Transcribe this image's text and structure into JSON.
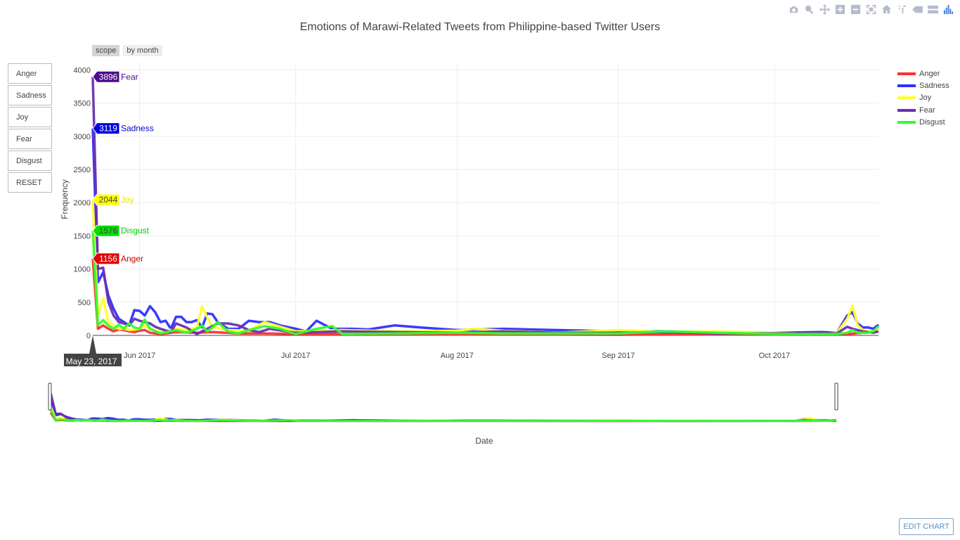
{
  "title": "Emotions of Marawi-Related Tweets from Philippine-based Twitter Users",
  "modebar": [
    "camera-icon",
    "zoom-icon",
    "pan-icon",
    "zoom-in-icon",
    "zoom-out-icon",
    "autoscale-icon",
    "reset-axes-icon",
    "spike-lines-icon",
    "hover-closest-icon",
    "hover-compare-icon",
    "plotly-logo-icon"
  ],
  "range_buttons": [
    "scope",
    "by month"
  ],
  "side_buttons": [
    "Anger",
    "Sadness",
    "Joy",
    "Fear",
    "Disgust",
    "RESET"
  ],
  "edit_chart": "EDIT CHART",
  "hover_date": "May 23, 2017",
  "colors": {
    "Anger": "#ff2f2f",
    "Sadness": "#2f2fff",
    "Joy": "#ffff2f",
    "Fear": "#6a2fb0",
    "Disgust": "#2fff2f"
  },
  "hover_labels": [
    {
      "series": "Fear",
      "value": "3896",
      "name": "Fear",
      "bg": "#4b0d8c",
      "fg": "#fff",
      "text": "#4b0d8c"
    },
    {
      "series": "Sadness",
      "value": "3119",
      "name": "Sadness",
      "bg": "#0000e0",
      "fg": "#fff",
      "text": "#0000c0"
    },
    {
      "series": "Joy",
      "value": "2044",
      "name": "Joy",
      "bg": "#ffff00",
      "fg": "#444",
      "text": "#e6e600"
    },
    {
      "series": "Disgust",
      "value": "1576",
      "name": "Disgust",
      "bg": "#00e000",
      "fg": "#444",
      "text": "#00cc00"
    },
    {
      "series": "Anger",
      "value": "1156",
      "name": "Anger",
      "bg": "#e00000",
      "fg": "#fff",
      "text": "#cc0000"
    }
  ],
  "chart_data": {
    "type": "line",
    "title": "Emotions of Marawi-Related Tweets from Philippine-based Twitter Users",
    "xlabel": "Date",
    "ylabel": "Frequency",
    "xlim": [
      "2017-05-23",
      "2017-10-21"
    ],
    "ylim": [
      0,
      4100
    ],
    "yticks": [
      0,
      500,
      1000,
      1500,
      2000,
      2500,
      3000,
      3500,
      4000
    ],
    "xticks": [
      {
        "date": "2017-06-01",
        "label": "Jun 2017"
      },
      {
        "date": "2017-07-01",
        "label": "Jul 2017"
      },
      {
        "date": "2017-08-01",
        "label": "Aug 2017"
      },
      {
        "date": "2017-09-01",
        "label": "Sep 2017"
      },
      {
        "date": "2017-10-01",
        "label": "Oct 2017"
      }
    ],
    "legend_position": "right",
    "grid": true,
    "series": [
      {
        "name": "Anger",
        "color": "#ff2f2f",
        "points": [
          [
            "2017-05-23",
            1156
          ],
          [
            "2017-05-24",
            100
          ],
          [
            "2017-05-25",
            150
          ],
          [
            "2017-05-26",
            100
          ],
          [
            "2017-05-27",
            60
          ],
          [
            "2017-05-28",
            90
          ],
          [
            "2017-05-29",
            80
          ],
          [
            "2017-05-30",
            60
          ],
          [
            "2017-05-31",
            50
          ],
          [
            "2017-06-01",
            70
          ],
          [
            "2017-06-02",
            80
          ],
          [
            "2017-06-03",
            40
          ],
          [
            "2017-06-04",
            30
          ],
          [
            "2017-06-05",
            20
          ],
          [
            "2017-06-08",
            50
          ],
          [
            "2017-06-12",
            40
          ],
          [
            "2017-06-15",
            50
          ],
          [
            "2017-06-20",
            30
          ],
          [
            "2017-06-25",
            30
          ],
          [
            "2017-07-01",
            20
          ],
          [
            "2017-07-10",
            20
          ],
          [
            "2017-07-20",
            15
          ],
          [
            "2017-08-01",
            15
          ],
          [
            "2017-08-15",
            15
          ],
          [
            "2017-09-01",
            10
          ],
          [
            "2017-09-15",
            15
          ],
          [
            "2017-10-01",
            15
          ],
          [
            "2017-10-10",
            20
          ],
          [
            "2017-10-13",
            30
          ],
          [
            "2017-10-15",
            20
          ],
          [
            "2017-10-18",
            40
          ],
          [
            "2017-10-21",
            60
          ]
        ]
      },
      {
        "name": "Sadness",
        "color": "#2f2fff",
        "points": [
          [
            "2017-05-23",
            3119
          ],
          [
            "2017-05-24",
            800
          ],
          [
            "2017-05-25",
            950
          ],
          [
            "2017-05-26",
            600
          ],
          [
            "2017-05-27",
            400
          ],
          [
            "2017-05-28",
            250
          ],
          [
            "2017-05-29",
            200
          ],
          [
            "2017-05-30",
            150
          ],
          [
            "2017-05-31",
            380
          ],
          [
            "2017-06-01",
            370
          ],
          [
            "2017-06-02",
            300
          ],
          [
            "2017-06-03",
            440
          ],
          [
            "2017-06-04",
            350
          ],
          [
            "2017-06-05",
            200
          ],
          [
            "2017-06-06",
            220
          ],
          [
            "2017-06-07",
            100
          ],
          [
            "2017-06-08",
            280
          ],
          [
            "2017-06-09",
            280
          ],
          [
            "2017-06-10",
            200
          ],
          [
            "2017-06-11",
            200
          ],
          [
            "2017-06-12",
            230
          ],
          [
            "2017-06-13",
            120
          ],
          [
            "2017-06-14",
            330
          ],
          [
            "2017-06-15",
            320
          ],
          [
            "2017-06-16",
            200
          ],
          [
            "2017-06-18",
            100
          ],
          [
            "2017-06-20",
            100
          ],
          [
            "2017-06-22",
            220
          ],
          [
            "2017-06-24",
            200
          ],
          [
            "2017-06-26",
            200
          ],
          [
            "2017-06-28",
            150
          ],
          [
            "2017-07-01",
            100
          ],
          [
            "2017-07-03",
            60
          ],
          [
            "2017-07-05",
            220
          ],
          [
            "2017-07-08",
            100
          ],
          [
            "2017-07-12",
            100
          ],
          [
            "2017-07-15",
            90
          ],
          [
            "2017-07-20",
            150
          ],
          [
            "2017-07-25",
            120
          ],
          [
            "2017-08-01",
            80
          ],
          [
            "2017-08-10",
            100
          ],
          [
            "2017-08-20",
            80
          ],
          [
            "2017-09-01",
            60
          ],
          [
            "2017-09-10",
            60
          ],
          [
            "2017-09-20",
            40
          ],
          [
            "2017-10-01",
            40
          ],
          [
            "2017-10-10",
            50
          ],
          [
            "2017-10-13",
            40
          ],
          [
            "2017-10-15",
            300
          ],
          [
            "2017-10-16",
            350
          ],
          [
            "2017-10-17",
            180
          ],
          [
            "2017-10-18",
            120
          ],
          [
            "2017-10-19",
            120
          ],
          [
            "2017-10-20",
            100
          ],
          [
            "2017-10-21",
            160
          ]
        ]
      },
      {
        "name": "Joy",
        "color": "#ffff2f",
        "points": [
          [
            "2017-05-23",
            2044
          ],
          [
            "2017-05-24",
            300
          ],
          [
            "2017-05-25",
            560
          ],
          [
            "2017-05-26",
            200
          ],
          [
            "2017-05-27",
            150
          ],
          [
            "2017-05-28",
            100
          ],
          [
            "2017-05-29",
            100
          ],
          [
            "2017-05-30",
            80
          ],
          [
            "2017-05-31",
            90
          ],
          [
            "2017-06-01",
            100
          ],
          [
            "2017-06-02",
            150
          ],
          [
            "2017-06-03",
            100
          ],
          [
            "2017-06-05",
            50
          ],
          [
            "2017-06-08",
            100
          ],
          [
            "2017-06-10",
            80
          ],
          [
            "2017-06-12",
            120
          ],
          [
            "2017-06-13",
            440
          ],
          [
            "2017-06-14",
            270
          ],
          [
            "2017-06-15",
            130
          ],
          [
            "2017-06-18",
            80
          ],
          [
            "2017-06-22",
            70
          ],
          [
            "2017-06-25",
            200
          ],
          [
            "2017-07-01",
            60
          ],
          [
            "2017-07-10",
            80
          ],
          [
            "2017-07-20",
            60
          ],
          [
            "2017-08-01",
            70
          ],
          [
            "2017-08-04",
            100
          ],
          [
            "2017-08-10",
            70
          ],
          [
            "2017-08-20",
            40
          ],
          [
            "2017-09-01",
            80
          ],
          [
            "2017-09-10",
            50
          ],
          [
            "2017-09-20",
            60
          ],
          [
            "2017-10-01",
            40
          ],
          [
            "2017-10-10",
            30
          ],
          [
            "2017-10-13",
            40
          ],
          [
            "2017-10-15",
            250
          ],
          [
            "2017-10-16",
            450
          ],
          [
            "2017-10-17",
            150
          ],
          [
            "2017-10-18",
            80
          ],
          [
            "2017-10-19",
            60
          ],
          [
            "2017-10-20",
            60
          ],
          [
            "2017-10-21",
            80
          ]
        ]
      },
      {
        "name": "Fear",
        "color": "#6a2fb0",
        "points": [
          [
            "2017-05-23",
            3896
          ],
          [
            "2017-05-24",
            1000
          ],
          [
            "2017-05-25",
            1020
          ],
          [
            "2017-05-26",
            500
          ],
          [
            "2017-05-27",
            300
          ],
          [
            "2017-05-28",
            200
          ],
          [
            "2017-05-29",
            180
          ],
          [
            "2017-05-30",
            150
          ],
          [
            "2017-05-31",
            250
          ],
          [
            "2017-06-01",
            220
          ],
          [
            "2017-06-02",
            200
          ],
          [
            "2017-06-03",
            180
          ],
          [
            "2017-06-04",
            130
          ],
          [
            "2017-06-05",
            100
          ],
          [
            "2017-06-07",
            50
          ],
          [
            "2017-06-08",
            180
          ],
          [
            "2017-06-10",
            120
          ],
          [
            "2017-06-12",
            20
          ],
          [
            "2017-06-14",
            100
          ],
          [
            "2017-06-16",
            180
          ],
          [
            "2017-06-18",
            180
          ],
          [
            "2017-06-20",
            150
          ],
          [
            "2017-06-22",
            80
          ],
          [
            "2017-06-24",
            50
          ],
          [
            "2017-06-26",
            100
          ],
          [
            "2017-07-01",
            40
          ],
          [
            "2017-07-10",
            60
          ],
          [
            "2017-07-20",
            50
          ],
          [
            "2017-08-01",
            40
          ],
          [
            "2017-08-10",
            60
          ],
          [
            "2017-08-20",
            40
          ],
          [
            "2017-09-01",
            40
          ],
          [
            "2017-09-10",
            50
          ],
          [
            "2017-09-20",
            30
          ],
          [
            "2017-10-01",
            30
          ],
          [
            "2017-10-10",
            40
          ],
          [
            "2017-10-13",
            30
          ],
          [
            "2017-10-15",
            130
          ],
          [
            "2017-10-16",
            100
          ],
          [
            "2017-10-17",
            80
          ],
          [
            "2017-10-18",
            60
          ],
          [
            "2017-10-19",
            50
          ],
          [
            "2017-10-20",
            40
          ],
          [
            "2017-10-21",
            60
          ]
        ]
      },
      {
        "name": "Disgust",
        "color": "#2fff2f",
        "points": [
          [
            "2017-05-23",
            1576
          ],
          [
            "2017-05-24",
            150
          ],
          [
            "2017-05-25",
            230
          ],
          [
            "2017-05-26",
            150
          ],
          [
            "2017-05-27",
            100
          ],
          [
            "2017-05-28",
            160
          ],
          [
            "2017-05-29",
            100
          ],
          [
            "2017-05-30",
            180
          ],
          [
            "2017-05-31",
            120
          ],
          [
            "2017-06-01",
            100
          ],
          [
            "2017-06-02",
            240
          ],
          [
            "2017-06-03",
            100
          ],
          [
            "2017-06-05",
            30
          ],
          [
            "2017-06-08",
            80
          ],
          [
            "2017-06-10",
            40
          ],
          [
            "2017-06-12",
            100
          ],
          [
            "2017-06-13",
            150
          ],
          [
            "2017-06-14",
            60
          ],
          [
            "2017-06-15",
            120
          ],
          [
            "2017-06-16",
            200
          ],
          [
            "2017-06-18",
            60
          ],
          [
            "2017-06-20",
            30
          ],
          [
            "2017-06-22",
            80
          ],
          [
            "2017-06-25",
            140
          ],
          [
            "2017-06-28",
            100
          ],
          [
            "2017-07-01",
            20
          ],
          [
            "2017-07-05",
            100
          ],
          [
            "2017-07-08",
            140
          ],
          [
            "2017-07-10",
            20
          ],
          [
            "2017-07-20",
            30
          ],
          [
            "2017-08-01",
            40
          ],
          [
            "2017-08-10",
            30
          ],
          [
            "2017-08-20",
            30
          ],
          [
            "2017-09-01",
            30
          ],
          [
            "2017-09-10",
            60
          ],
          [
            "2017-09-20",
            40
          ],
          [
            "2017-10-01",
            20
          ],
          [
            "2017-10-10",
            20
          ],
          [
            "2017-10-13",
            20
          ],
          [
            "2017-10-15",
            40
          ],
          [
            "2017-10-16",
            80
          ],
          [
            "2017-10-17",
            40
          ],
          [
            "2017-10-18",
            40
          ],
          [
            "2017-10-19",
            40
          ],
          [
            "2017-10-20",
            60
          ],
          [
            "2017-10-21",
            140
          ]
        ]
      }
    ]
  }
}
